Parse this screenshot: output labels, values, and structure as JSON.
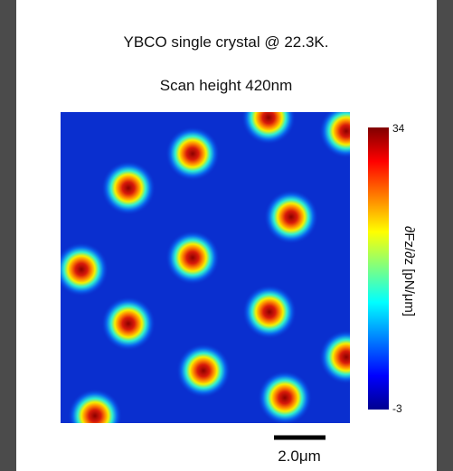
{
  "title": "YBCO single crystal @ 22.3K.",
  "subtitle": "Scan height 420nm",
  "colorbar": {
    "max_label": "34",
    "min_label": "-3",
    "label": "∂Fz/∂z [pN/μm]"
  },
  "scale_bar": {
    "label": "2.0μm"
  }
}
